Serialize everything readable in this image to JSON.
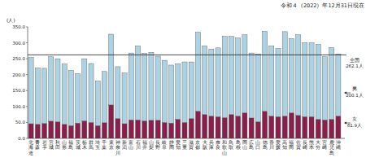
{
  "chart_data": {
    "type": "bar",
    "stacked": true,
    "grid": false,
    "title": "令和４（2022）年12月31日現在",
    "y_label": "(人)",
    "categories": [
      "北海道",
      "青森",
      "岩手",
      "宮城",
      "秋田",
      "山形",
      "福島",
      "茨城",
      "栃木",
      "群馬",
      "埼玉",
      "千葉",
      "東京",
      "神奈川",
      "新潟",
      "富山",
      "石川",
      "福井",
      "山梨",
      "長野",
      "岐阜",
      "静岡",
      "愛知",
      "三重",
      "滋賀",
      "京都",
      "大阪",
      "兵庫",
      "奈良",
      "和歌山",
      "鳥取",
      "島根",
      "岡山",
      "広島",
      "山口",
      "徳島",
      "香川",
      "愛媛",
      "高知",
      "福岡",
      "佐賀",
      "長崎",
      "熊本",
      "大分",
      "宮崎",
      "鹿児島",
      "沖縄"
    ],
    "series": [
      {
        "name": "女",
        "color": "#8a1f4c",
        "mean": 61.9,
        "mean_label": "61.9人",
        "values": [
          46,
          44,
          47,
          54,
          52,
          44,
          40,
          48,
          55,
          50,
          40,
          49,
          105,
          62,
          46,
          58,
          58,
          55,
          57,
          57,
          50,
          48,
          60,
          50,
          62,
          85,
          75,
          70,
          68,
          65,
          75,
          70,
          80,
          64,
          52,
          85,
          70,
          68,
          70,
          80,
          72,
          68,
          68,
          60,
          58,
          60,
          70
        ]
      },
      {
        "name": "男",
        "color": "#acd3e3",
        "mean": 200.1,
        "mean_label": "200.1人",
        "values": [
          208,
          177,
          173,
          202,
          198,
          189,
          173,
          155,
          195,
          185,
          140,
          161,
          222,
          163,
          159,
          210,
          232,
          212,
          213,
          201,
          195,
          182,
          174,
          190,
          178,
          248,
          215,
          210,
          216,
          255,
          245,
          245,
          245,
          204,
          213,
          251,
          220,
          214,
          265,
          233,
          253,
          232,
          232,
          235,
          198,
          225,
          195
        ]
      }
    ],
    "reference_line": {
      "value": 262.1,
      "label": "全国",
      "value_label": "262.1人"
    },
    "ylim": [
      0,
      350
    ],
    "yticks": [
      {
        "value": 0,
        "label": "0.0"
      },
      {
        "value": 50,
        "label": "50.0"
      },
      {
        "value": 100,
        "label": "100.0"
      },
      {
        "value": 150,
        "label": "150.0"
      },
      {
        "value": 200,
        "label": "200.0"
      },
      {
        "value": 250,
        "label": "250.0"
      },
      {
        "value": 300,
        "label": "300.0"
      },
      {
        "value": 350,
        "label": "350.0"
      }
    ]
  }
}
